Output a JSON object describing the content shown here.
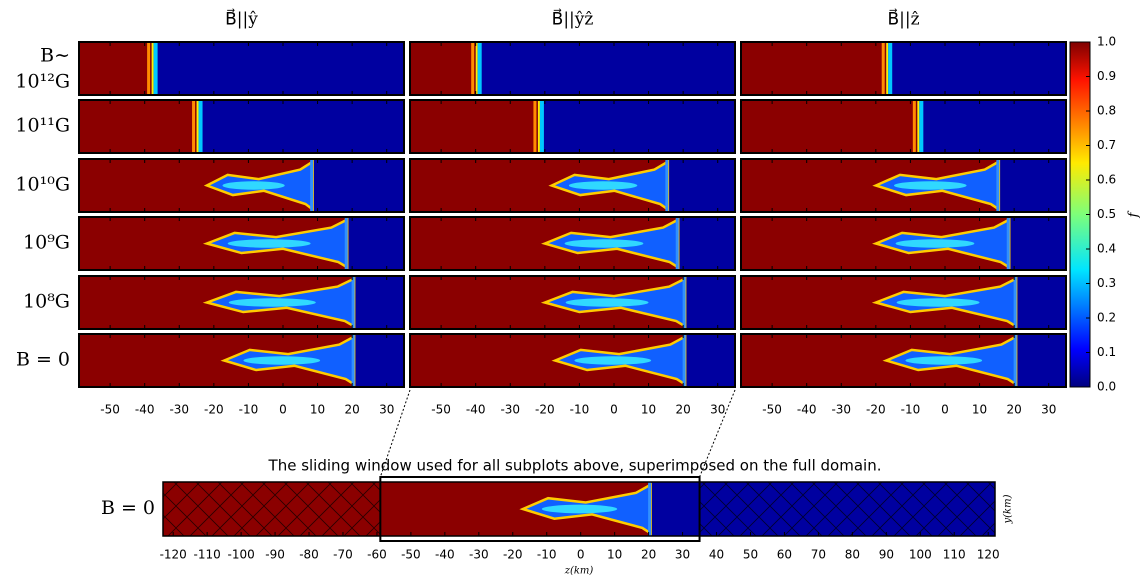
{
  "chart_data": {
    "type": "heatmap",
    "column_titles": [
      "B⃗||ŷ",
      "B⃗||ŷẑ",
      "B⃗||ẑ"
    ],
    "row_labels": [
      [
        "B∼",
        "10¹²G"
      ],
      [
        "10¹¹G"
      ],
      [
        "10¹⁰G"
      ],
      [
        "10⁹G"
      ],
      [
        "10⁸G"
      ],
      [
        "B = 0"
      ]
    ],
    "xlim": [
      -59,
      35
    ],
    "xticks": [
      -50,
      -40,
      -30,
      -20,
      -10,
      0,
      10,
      20,
      30
    ],
    "colorbar": {
      "label": "f",
      "lim": [
        0,
        1
      ],
      "ticks": [
        {
          "value": 0,
          "label": "0.0"
        },
        0.1,
        0.2,
        0.3,
        0.4,
        0.5,
        0.6,
        0.7,
        0.8,
        0.9,
        {
          "value": 1,
          "label": "1.0"
        }
      ]
    },
    "inset": {
      "title": "The sliding window used for all subplots above, superimposed on the full domain.",
      "row_label": "B = 0",
      "xlabel": "z(km)",
      "ylabel": "y(km)",
      "xlim": [
        -123,
        122
      ],
      "xticks": [
        -120,
        -110,
        -100,
        -90,
        -80,
        -70,
        -60,
        -50,
        -40,
        -30,
        -20,
        -10,
        0,
        10,
        20,
        30,
        40,
        50,
        60,
        70,
        80,
        90,
        100,
        110,
        120
      ],
      "window": [
        -59,
        35
      ]
    }
  }
}
